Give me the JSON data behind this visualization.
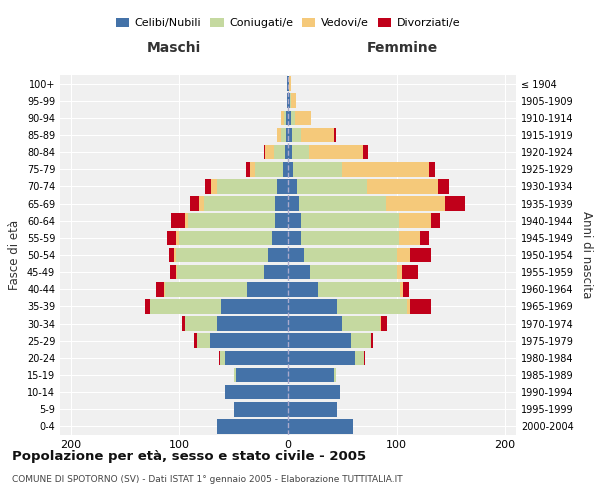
{
  "age_groups": [
    "0-4",
    "5-9",
    "10-14",
    "15-19",
    "20-24",
    "25-29",
    "30-34",
    "35-39",
    "40-44",
    "45-49",
    "50-54",
    "55-59",
    "60-64",
    "65-69",
    "70-74",
    "75-79",
    "80-84",
    "85-89",
    "90-94",
    "95-99",
    "100+"
  ],
  "birth_years": [
    "2000-2004",
    "1995-1999",
    "1990-1994",
    "1985-1989",
    "1980-1984",
    "1975-1979",
    "1970-1974",
    "1965-1969",
    "1960-1964",
    "1955-1959",
    "1950-1954",
    "1945-1949",
    "1940-1944",
    "1935-1939",
    "1930-1934",
    "1925-1929",
    "1920-1924",
    "1915-1919",
    "1910-1914",
    "1905-1909",
    "≤ 1904"
  ],
  "colors": {
    "celibi": "#4472a8",
    "coniugati": "#c5d9a0",
    "vedovi": "#f5c97a",
    "divorziati": "#c0001a"
  },
  "males": {
    "celibi": [
      65,
      50,
      58,
      48,
      58,
      72,
      65,
      62,
      38,
      22,
      18,
      15,
      12,
      12,
      10,
      5,
      3,
      2,
      2,
      1,
      1
    ],
    "coniugati": [
      0,
      0,
      0,
      2,
      5,
      12,
      30,
      65,
      75,
      80,
      85,
      85,
      80,
      65,
      55,
      25,
      10,
      4,
      2,
      0,
      0
    ],
    "vedovi": [
      0,
      0,
      0,
      0,
      0,
      0,
      0,
      0,
      1,
      1,
      2,
      3,
      3,
      5,
      6,
      5,
      8,
      4,
      2,
      0,
      0
    ],
    "divorziati": [
      0,
      0,
      0,
      0,
      1,
      3,
      3,
      5,
      8,
      6,
      5,
      8,
      13,
      8,
      5,
      4,
      1,
      0,
      0,
      0,
      0
    ]
  },
  "females": {
    "celibi": [
      60,
      45,
      48,
      42,
      62,
      58,
      50,
      45,
      28,
      20,
      15,
      12,
      12,
      10,
      8,
      5,
      4,
      4,
      3,
      2,
      1
    ],
    "coniugati": [
      0,
      0,
      0,
      2,
      8,
      18,
      35,
      65,
      75,
      80,
      85,
      90,
      90,
      80,
      65,
      45,
      15,
      8,
      3,
      1,
      0
    ],
    "vedovi": [
      0,
      0,
      0,
      0,
      0,
      0,
      1,
      2,
      3,
      5,
      12,
      20,
      30,
      55,
      65,
      80,
      50,
      30,
      15,
      4,
      2
    ],
    "divorziati": [
      0,
      0,
      0,
      0,
      1,
      2,
      5,
      20,
      5,
      15,
      20,
      8,
      8,
      18,
      10,
      5,
      5,
      2,
      0,
      0,
      0
    ]
  },
  "title": "Popolazione per età, sesso e stato civile - 2005",
  "subtitle": "COMUNE DI SPOTORNO (SV) - Dati ISTAT 1° gennaio 2005 - Elaborazione TUTTITALIA.IT",
  "ylabel_left": "Fasce di età",
  "ylabel_right": "Anni di nascita",
  "xlabel_left": "Maschi",
  "xlabel_right": "Femmine",
  "xlim": 210,
  "background": "#ffffff",
  "plot_bg": "#f0f0f0",
  "grid_color": "#ffffff"
}
